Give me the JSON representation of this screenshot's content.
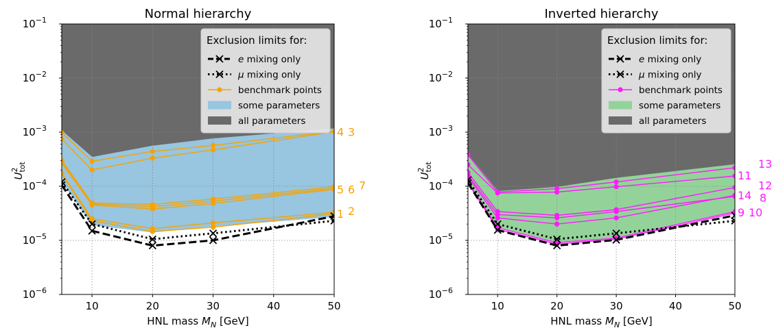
{
  "figure": {
    "colors": {
      "grey_region": "#6a6a6a",
      "left_band": "#98c5e0",
      "left_line": "#f5a300",
      "right_band": "#93d39a",
      "right_line": "#ff1aff",
      "limit": "#000000",
      "grid": "#888888",
      "legend_bg": "#e6e6e6"
    }
  },
  "chart_data": [
    {
      "type": "area",
      "panel": "left",
      "title": "Normal hierarchy",
      "xlabel": "HNL mass M_N [GeV]",
      "ylabel": "U²_tot",
      "xlim": [
        5,
        50
      ],
      "ylim": [
        1e-06,
        0.1
      ],
      "y_scale": "log",
      "grid": true,
      "x": [
        5,
        10,
        20,
        30,
        50
      ],
      "x_tick_labels": [
        "10",
        "20",
        "30",
        "40",
        "50"
      ],
      "x_tick_values": [
        10,
        20,
        30,
        40,
        50
      ],
      "y_tick_labels": [
        {
          "base": "10",
          "exp": "−6"
        },
        {
          "base": "10",
          "exp": "−5"
        },
        {
          "base": "10",
          "exp": "−4"
        },
        {
          "base": "10",
          "exp": "−3"
        },
        {
          "base": "10",
          "exp": "−2"
        },
        {
          "base": "10",
          "exp": "−1"
        }
      ],
      "y_tick_exps": [
        -6,
        -5,
        -4,
        -3,
        -2,
        -1
      ],
      "legend": {
        "position": "top-right",
        "title": "Exclusion limits for:",
        "entries": [
          {
            "label": "e mixing only",
            "style": "dashed-x"
          },
          {
            "label": "μ mixing only",
            "style": "dotted-x"
          },
          {
            "label": "benchmark points",
            "style": "line-marker"
          },
          {
            "label": "some parameters",
            "style": "band"
          },
          {
            "label": "all parameters",
            "style": "grey"
          }
        ]
      },
      "all_parameters_boundary": [
        0.00105,
        0.00034,
        0.00055,
        0.00075,
        0.00115
      ],
      "some_parameters_boundary": [
        0.00012,
        1.9e-05,
        1.4e-05,
        1.8e-05,
        2.7e-05
      ],
      "e_mixing_only": [
        0.000105,
        1.5e-05,
        8e-06,
        1e-05,
        2.8e-05
      ],
      "mu_mixing_only": [
        0.00012,
        2e-05,
        1.05e-05,
        1.35e-05,
        2.3e-05
      ],
      "benchmarks": [
        {
          "label": "1",
          "values": [
            0.00017,
            2.3e-05,
            1.45e-05,
            1.75e-05,
            3.1e-05
          ]
        },
        {
          "label": "2",
          "values": [
            0.000175,
            2.5e-05,
            1.65e-05,
            2.1e-05,
            3.3e-05
          ]
        },
        {
          "label": "3",
          "values": [
            0.00075,
            0.0002,
            0.00033,
            0.00047,
            0.00102
          ]
        },
        {
          "label": "4",
          "values": [
            0.00098,
            0.00029,
            0.00044,
            0.00057,
            0.00104
          ]
        },
        {
          "label": "5",
          "values": [
            0.00027,
            4.5e-05,
            3.8e-05,
            4.8e-05,
            8.8e-05
          ]
        },
        {
          "label": "6",
          "values": [
            0.00029,
            4.7e-05,
            4.2e-05,
            5.3e-05,
            9.2e-05
          ]
        },
        {
          "label": "7",
          "values": [
            0.0003,
            4.9e-05,
            4.6e-05,
            5.8e-05,
            9.8e-05
          ]
        }
      ],
      "end_labels": [
        {
          "text": "1",
          "dx": 0,
          "y": 3.1e-05
        },
        {
          "text": "2",
          "dx": 16,
          "y": 3.5e-05
        },
        {
          "text": "4",
          "dx": 0,
          "y": 0.00102
        },
        {
          "text": "3",
          "dx": 16,
          "y": 0.00102
        },
        {
          "text": "5",
          "dx": 0,
          "y": 8.8e-05
        },
        {
          "text": "6",
          "dx": 16,
          "y": 8.8e-05
        },
        {
          "text": "7",
          "dx": 32,
          "y": 0.000105
        }
      ]
    },
    {
      "type": "area",
      "panel": "right",
      "title": "Inverted hierarchy",
      "xlabel": "HNL mass M_N [GeV]",
      "ylabel": "U²_tot",
      "xlim": [
        5,
        50
      ],
      "ylim": [
        1e-06,
        0.1
      ],
      "y_scale": "log",
      "grid": true,
      "x": [
        5,
        10,
        20,
        30,
        50
      ],
      "x_tick_labels": [
        "10",
        "20",
        "30",
        "40",
        "50"
      ],
      "x_tick_values": [
        10,
        20,
        30,
        40,
        50
      ],
      "y_tick_labels": [
        {
          "base": "10",
          "exp": "−6"
        },
        {
          "base": "10",
          "exp": "−5"
        },
        {
          "base": "10",
          "exp": "−4"
        },
        {
          "base": "10",
          "exp": "−3"
        },
        {
          "base": "10",
          "exp": "−2"
        },
        {
          "base": "10",
          "exp": "−1"
        }
      ],
      "y_tick_exps": [
        -6,
        -5,
        -4,
        -3,
        -2,
        -1
      ],
      "legend": {
        "position": "top-right",
        "title": "Exclusion limits for:",
        "entries": [
          {
            "label": "e mixing only",
            "style": "dashed-x"
          },
          {
            "label": "μ mixing only",
            "style": "dotted-x"
          },
          {
            "label": "benchmark points",
            "style": "line-marker"
          },
          {
            "label": "some parameters",
            "style": "band"
          },
          {
            "label": "all parameters",
            "style": "grey"
          }
        ]
      },
      "all_parameters_boundary": [
        0.00038,
        8e-05,
        9.5e-05,
        0.00014,
        0.00025
      ],
      "some_parameters_boundary": [
        0.000125,
        1.7e-05,
        9e-06,
        1.1e-05,
        3.3e-05
      ],
      "e_mixing_only": [
        0.000115,
        1.55e-05,
        8e-06,
        1.02e-05,
        2.9e-05
      ],
      "mu_mixing_only": [
        0.00013,
        2e-05,
        1.05e-05,
        1.35e-05,
        2.3e-05
      ],
      "benchmarks": [
        {
          "label": "9",
          "values": [
            0.000115,
            1.6e-05,
            8.5e-06,
            1.05e-05,
            3.2e-05
          ]
        },
        {
          "label": "10",
          "values": [
            0.00012,
            1.7e-05,
            9e-06,
            1.1e-05,
            3.4e-05
          ]
        },
        {
          "label": "11",
          "values": [
            0.00025,
            7.5e-05,
            7.8e-05,
            9.8e-05,
            0.000155
          ]
        },
        {
          "label": "12",
          "values": [
            0.00018,
            3.4e-05,
            2.9e-05,
            3.7e-05,
            9.5e-05
          ]
        },
        {
          "label": "13",
          "values": [
            0.00038,
            7.8e-05,
            9e-05,
            0.00012,
            0.00022
          ]
        },
        {
          "label": "14",
          "values": [
            0.00015,
            2.6e-05,
            2e-05,
            2.6e-05,
            6.8e-05
          ]
        },
        {
          "label": "8",
          "values": [
            0.00016,
            3e-05,
            2.6e-05,
            3.4e-05,
            6.5e-05
          ]
        }
      ],
      "end_labels": [
        {
          "text": "9",
          "dx": 0,
          "y": 3.3e-05
        },
        {
          "text": "10",
          "dx": 16,
          "y": 3.3e-05
        },
        {
          "text": "11",
          "dx": 0,
          "y": 0.00016
        },
        {
          "text": "13",
          "dx": 30,
          "y": 0.00026
        },
        {
          "text": "12",
          "dx": 30,
          "y": 0.000105
        },
        {
          "text": "14",
          "dx": 0,
          "y": 6.8e-05
        },
        {
          "text": "8",
          "dx": 32,
          "y": 6.2e-05
        }
      ]
    }
  ]
}
